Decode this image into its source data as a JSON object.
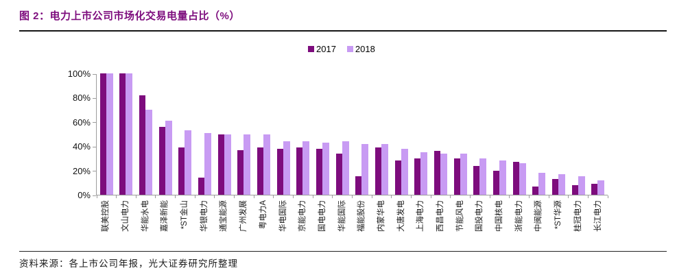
{
  "figure": {
    "title": "图 2：电力上市公司市场化交易电量占比（%）",
    "source": "资料来源：各上市公司年报，光大证券研究所整理"
  },
  "colors": {
    "title": "#7D0C7D",
    "bar_2017": "#7D0C7D",
    "bar_2018": "#C89BF3",
    "axis": "#9c9c9c",
    "text": "#1a1a1a"
  },
  "chart_data": {
    "type": "bar",
    "title": "电力上市公司市场化交易电量占比（%）",
    "xlabel": "",
    "ylabel": "",
    "ylim": [
      0,
      100
    ],
    "yticks": [
      0,
      20,
      40,
      60,
      80,
      100
    ],
    "ytick_labels": [
      "0%",
      "20%",
      "40%",
      "60%",
      "80%",
      "100%"
    ],
    "grid": false,
    "legend_position": "top-center",
    "categories": [
      "联美控股",
      "文山电力",
      "华能水电",
      "嘉泽新能",
      "*ST金山",
      "华银电力",
      "通宝能源",
      "广州发展",
      "粤电力A",
      "华电国际",
      "京能电力",
      "国电电力",
      "华能国际",
      "福能股份",
      "内蒙华电",
      "大唐发电",
      "上海电力",
      "西昌电力",
      "节能风电",
      "国投电力",
      "中国核电",
      "浙能电力",
      "中闽能源",
      "*ST华源",
      "桂冠电力",
      "长江电力"
    ],
    "series": [
      {
        "name": "2017",
        "color": "#7D0C7D",
        "values": [
          100,
          100,
          82,
          56,
          39,
          14,
          50,
          37,
          39,
          38,
          39,
          38,
          34,
          15,
          39,
          28,
          30,
          36,
          30,
          24,
          20,
          27,
          7,
          13,
          8,
          9
        ]
      },
      {
        "name": "2018",
        "color": "#C89BF3",
        "values": [
          100,
          100,
          70,
          61,
          53,
          51,
          50,
          50,
          50,
          44,
          44,
          43,
          44,
          42,
          42,
          38,
          35,
          34,
          34,
          30,
          28,
          26,
          18,
          17,
          15,
          12
        ]
      }
    ]
  }
}
